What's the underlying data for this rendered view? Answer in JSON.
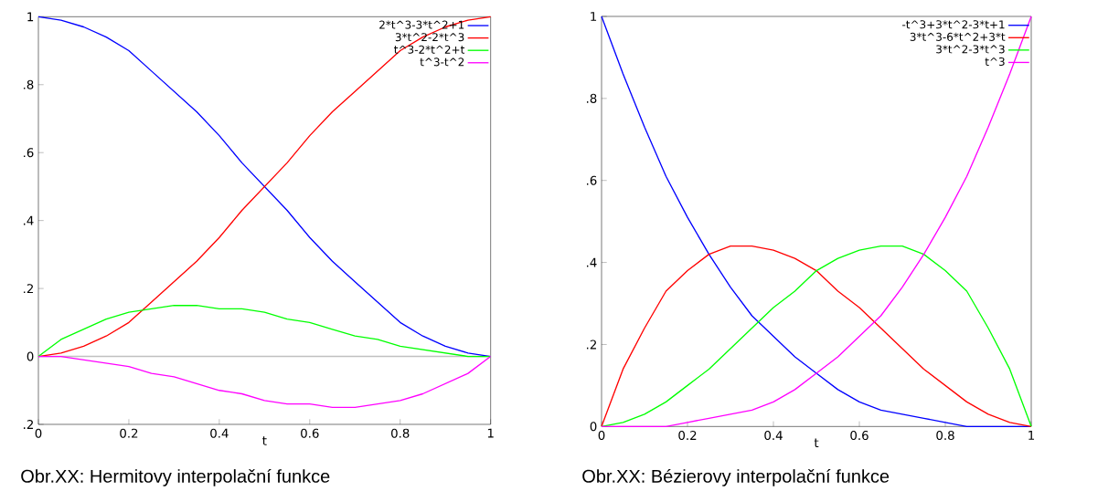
{
  "chart_data": [
    {
      "type": "line",
      "xlabel": "t",
      "x": [
        0,
        0.05,
        0.1,
        0.15,
        0.2,
        0.25,
        0.3,
        0.35,
        0.4,
        0.45,
        0.5,
        0.55,
        0.6,
        0.65,
        0.7,
        0.75,
        0.8,
        0.85,
        0.9,
        0.95,
        1
      ],
      "series": [
        {
          "name": "2*t^3-3*t^2+1",
          "color": "#0000ff",
          "values": [
            1,
            0.99,
            0.97,
            0.94,
            0.9,
            0.84,
            0.78,
            0.72,
            0.65,
            0.57,
            0.5,
            0.43,
            0.35,
            0.28,
            0.22,
            0.16,
            0.1,
            0.06,
            0.03,
            0.01,
            0
          ]
        },
        {
          "name": "3*t^2-2*t^3",
          "color": "#ff0000",
          "values": [
            0,
            0.01,
            0.03,
            0.06,
            0.1,
            0.16,
            0.22,
            0.28,
            0.35,
            0.43,
            0.5,
            0.57,
            0.65,
            0.72,
            0.78,
            0.84,
            0.9,
            0.94,
            0.97,
            0.99,
            1
          ]
        },
        {
          "name": "t^3-2*t^2+t",
          "color": "#00ff00",
          "values": [
            0,
            0.05,
            0.08,
            0.11,
            0.13,
            0.14,
            0.15,
            0.15,
            0.14,
            0.14,
            0.13,
            0.11,
            0.1,
            0.08,
            0.06,
            0.05,
            0.03,
            0.02,
            0.01,
            0,
            0
          ]
        },
        {
          "name": "t^3-t^2",
          "color": "#ff00ff",
          "values": [
            0,
            0,
            -0.01,
            -0.02,
            -0.03,
            -0.05,
            -0.06,
            -0.08,
            -0.1,
            -0.11,
            -0.13,
            -0.14,
            -0.14,
            -0.15,
            -0.15,
            -0.14,
            -0.13,
            -0.11,
            -0.08,
            -0.05,
            0
          ]
        }
      ],
      "xlim": [
        0,
        1
      ],
      "ylim": [
        -0.2,
        1
      ],
      "xticks": [
        0,
        0.2,
        0.4,
        0.6,
        0.8,
        1
      ],
      "yticks": [
        {
          "value": -0.2,
          "label": ".2"
        },
        0,
        {
          "value": 0.2,
          "label": ".2"
        },
        {
          "value": 0.4,
          "label": ".4"
        },
        {
          "value": 0.6,
          "label": ".6"
        },
        {
          "value": 0.8,
          "label": ".8"
        },
        1
      ],
      "ref_lines": [
        {
          "axis": "y",
          "value": 0,
          "color": "#c0c0c0"
        }
      ],
      "legend": "top right",
      "grid": false,
      "annotations": [
        "Obr.XX: Hermitovy interpolační funkce"
      ]
    },
    {
      "type": "line",
      "xlabel": "t",
      "x": [
        0,
        0.05,
        0.1,
        0.15,
        0.2,
        0.25,
        0.3,
        0.35,
        0.4,
        0.45,
        0.5,
        0.55,
        0.6,
        0.65,
        0.7,
        0.75,
        0.8,
        0.85,
        0.9,
        0.95,
        1
      ],
      "series": [
        {
          "name": "-t^3+3*t^2-3*t+1",
          "color": "#0000ff",
          "values": [
            1,
            0.86,
            0.73,
            0.61,
            0.51,
            0.42,
            0.34,
            0.27,
            0.22,
            0.17,
            0.13,
            0.09,
            0.06,
            0.04,
            0.03,
            0.02,
            0.01,
            0,
            0,
            0,
            0
          ]
        },
        {
          "name": "3*t^3-6*t^2+3*t",
          "color": "#ff0000",
          "values": [
            0,
            0.14,
            0.24,
            0.33,
            0.38,
            0.42,
            0.44,
            0.44,
            0.43,
            0.41,
            0.38,
            0.33,
            0.29,
            0.24,
            0.19,
            0.14,
            0.1,
            0.06,
            0.03,
            0.01,
            0
          ]
        },
        {
          "name": "3*t^2-3*t^3",
          "color": "#00ff00",
          "values": [
            0,
            0.01,
            0.03,
            0.06,
            0.1,
            0.14,
            0.19,
            0.24,
            0.29,
            0.33,
            0.38,
            0.41,
            0.43,
            0.44,
            0.44,
            0.42,
            0.38,
            0.33,
            0.24,
            0.14,
            0
          ]
        },
        {
          "name": "t^3",
          "color": "#ff00ff",
          "values": [
            0,
            0,
            0,
            0,
            0.01,
            0.02,
            0.03,
            0.04,
            0.06,
            0.09,
            0.13,
            0.17,
            0.22,
            0.27,
            0.34,
            0.42,
            0.51,
            0.61,
            0.73,
            0.86,
            1
          ]
        }
      ],
      "xlim": [
        0,
        1
      ],
      "ylim": [
        0,
        1
      ],
      "xticks": [
        0,
        0.2,
        0.4,
        0.6,
        0.8,
        1
      ],
      "yticks": [
        0,
        {
          "value": 0.2,
          "label": ".2"
        },
        {
          "value": 0.4,
          "label": ".4"
        },
        {
          "value": 0.6,
          "label": ".6"
        },
        {
          "value": 0.8,
          "label": ".8"
        },
        1
      ],
      "legend": "top right",
      "grid": false,
      "annotations": [
        "Obr.XX: Bézierovy interpolační funkce"
      ]
    }
  ]
}
